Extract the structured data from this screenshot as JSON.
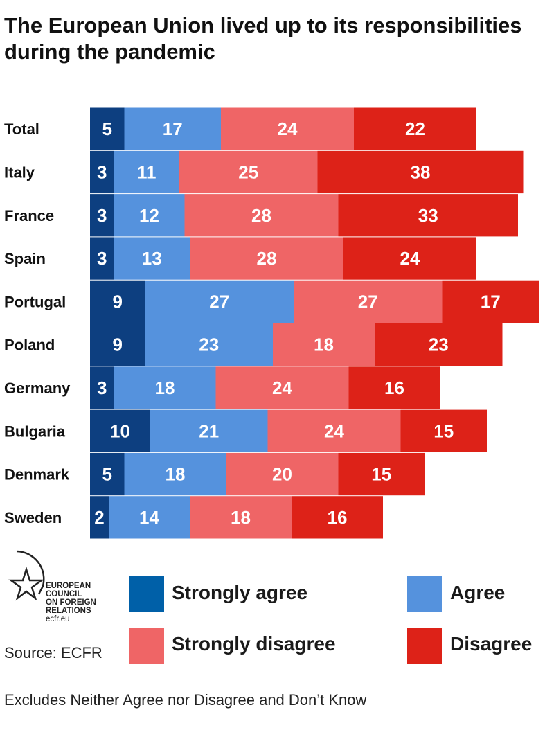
{
  "chart_data": {
    "type": "bar",
    "orientation": "horizontal-stacked",
    "title": "The European Union lived up to its responsibilities during the pandemic",
    "title_lines": [
      "The European Union lived up to its responsibilities",
      "during the pandemic"
    ],
    "categories": [
      "Total",
      "Italy",
      "France",
      "Spain",
      "Portugal",
      "Poland",
      "Germany",
      "Bulgaria",
      "Denmark",
      "Sweden"
    ],
    "series": [
      {
        "name": "Strongly agree",
        "color": "#0d3f80",
        "legend_color": "#0060a8",
        "values": [
          5,
          3,
          3,
          3,
          9,
          9,
          3,
          10,
          5,
          2
        ]
      },
      {
        "name": "Agree",
        "color": "#5592dd",
        "legend_color": "#5592dd",
        "values": [
          17,
          11,
          12,
          13,
          27,
          23,
          18,
          21,
          18,
          14
        ]
      },
      {
        "name": "Strongly disagree",
        "color": "#ef6566",
        "legend_color": "#ef6566",
        "values": [
          24,
          25,
          28,
          28,
          27,
          18,
          24,
          24,
          20,
          18
        ]
      },
      {
        "name": "Disagree",
        "color": "#dd2218",
        "legend_color": "#dd2218",
        "values": [
          22,
          38,
          33,
          24,
          17,
          23,
          16,
          15,
          15,
          16
        ]
      }
    ],
    "legend_placement": "bottom",
    "grid": false
  },
  "logo": {
    "lines": [
      "EUROPEAN",
      "COUNCIL",
      "ON FOREIGN",
      "RELATIONS"
    ],
    "url": "ecfr.eu"
  },
  "source": "Source: ECFR",
  "note": "Excludes Neither Agree nor Disagree and Don’t Know"
}
